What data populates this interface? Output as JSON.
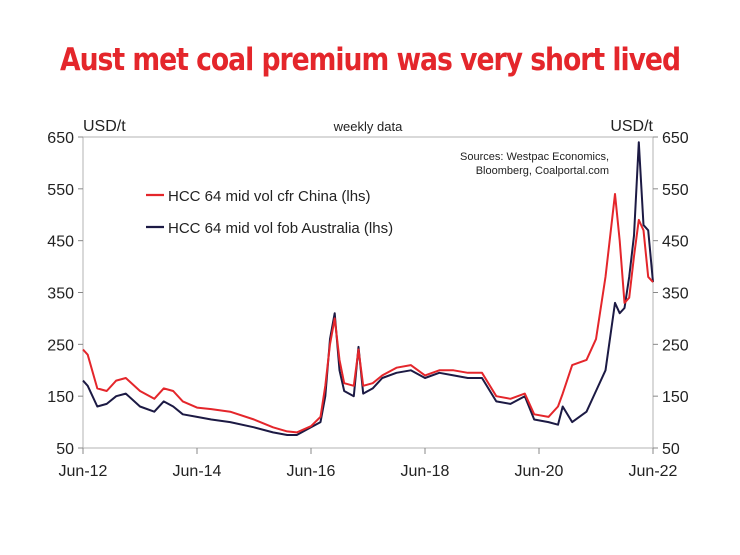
{
  "chart_data": {
    "type": "line",
    "title": "Aust met coal premium was very short lived",
    "left_unit": "USD/t",
    "right_unit": "USD/t",
    "frequency_note": "weekly data",
    "sources_line1": "Sources: Westpac Economics,",
    "sources_line2": "Bloomberg, Coalportal.com",
    "ylim": [
      50,
      650
    ],
    "yticks": [
      "650",
      "550",
      "450",
      "350",
      "250",
      "150",
      "50"
    ],
    "ytick_values": [
      650,
      550,
      450,
      350,
      250,
      150,
      50
    ],
    "xlim": [
      "2012-06",
      "2022-06"
    ],
    "xticks": [
      "Jun-12",
      "Jun-14",
      "Jun-16",
      "Jun-18",
      "Jun-20",
      "Jun-22"
    ],
    "xtick_values": [
      "2012-06",
      "2014-06",
      "2016-06",
      "2018-06",
      "2020-06",
      "2022-06"
    ],
    "grid": false,
    "legend_position": "top-left",
    "series": [
      {
        "name": "HCC 64 mid vol cfr China (lhs)",
        "color": "#e4262b",
        "points": [
          [
            "2012-06",
            240
          ],
          [
            "2012-07",
            230
          ],
          [
            "2012-09",
            165
          ],
          [
            "2012-11",
            160
          ],
          [
            "2013-01",
            180
          ],
          [
            "2013-03",
            185
          ],
          [
            "2013-06",
            160
          ],
          [
            "2013-09",
            145
          ],
          [
            "2013-11",
            165
          ],
          [
            "2014-01",
            160
          ],
          [
            "2014-03",
            140
          ],
          [
            "2014-06",
            128
          ],
          [
            "2014-09",
            125
          ],
          [
            "2015-01",
            120
          ],
          [
            "2015-06",
            105
          ],
          [
            "2015-10",
            90
          ],
          [
            "2016-01",
            82
          ],
          [
            "2016-03",
            80
          ],
          [
            "2016-06",
            92
          ],
          [
            "2016-08",
            110
          ],
          [
            "2016-09",
            170
          ],
          [
            "2016-10",
            250
          ],
          [
            "2016-11",
            300
          ],
          [
            "2016-12",
            220
          ],
          [
            "2017-01",
            175
          ],
          [
            "2017-03",
            170
          ],
          [
            "2017-04",
            240
          ],
          [
            "2017-05",
            170
          ],
          [
            "2017-07",
            175
          ],
          [
            "2017-09",
            190
          ],
          [
            "2017-12",
            205
          ],
          [
            "2018-03",
            210
          ],
          [
            "2018-06",
            190
          ],
          [
            "2018-09",
            200
          ],
          [
            "2018-12",
            200
          ],
          [
            "2019-03",
            195
          ],
          [
            "2019-06",
            195
          ],
          [
            "2019-09",
            150
          ],
          [
            "2019-12",
            145
          ],
          [
            "2020-03",
            155
          ],
          [
            "2020-05",
            115
          ],
          [
            "2020-08",
            110
          ],
          [
            "2020-10",
            130
          ],
          [
            "2020-11",
            155
          ],
          [
            "2021-01",
            210
          ],
          [
            "2021-04",
            220
          ],
          [
            "2021-06",
            260
          ],
          [
            "2021-08",
            380
          ],
          [
            "2021-10",
            540
          ],
          [
            "2021-11",
            450
          ],
          [
            "2021-12",
            330
          ],
          [
            "2022-01",
            340
          ],
          [
            "2022-02",
            420
          ],
          [
            "2022-03",
            490
          ],
          [
            "2022-04",
            470
          ],
          [
            "2022-05",
            380
          ],
          [
            "2022-06",
            370
          ]
        ]
      },
      {
        "name": "HCC 64 mid vol fob Australia (lhs)",
        "color": "#1c1a44",
        "points": [
          [
            "2012-06",
            180
          ],
          [
            "2012-07",
            170
          ],
          [
            "2012-09",
            130
          ],
          [
            "2012-11",
            135
          ],
          [
            "2013-01",
            150
          ],
          [
            "2013-03",
            155
          ],
          [
            "2013-06",
            130
          ],
          [
            "2013-09",
            120
          ],
          [
            "2013-11",
            140
          ],
          [
            "2014-01",
            130
          ],
          [
            "2014-03",
            115
          ],
          [
            "2014-06",
            110
          ],
          [
            "2014-09",
            105
          ],
          [
            "2015-01",
            100
          ],
          [
            "2015-06",
            90
          ],
          [
            "2015-10",
            80
          ],
          [
            "2016-01",
            75
          ],
          [
            "2016-03",
            75
          ],
          [
            "2016-06",
            90
          ],
          [
            "2016-08",
            100
          ],
          [
            "2016-09",
            150
          ],
          [
            "2016-10",
            260
          ],
          [
            "2016-11",
            310
          ],
          [
            "2016-12",
            200
          ],
          [
            "2017-01",
            160
          ],
          [
            "2017-03",
            150
          ],
          [
            "2017-04",
            245
          ],
          [
            "2017-05",
            155
          ],
          [
            "2017-07",
            165
          ],
          [
            "2017-09",
            185
          ],
          [
            "2017-12",
            195
          ],
          [
            "2018-03",
            200
          ],
          [
            "2018-06",
            185
          ],
          [
            "2018-09",
            195
          ],
          [
            "2018-12",
            190
          ],
          [
            "2019-03",
            185
          ],
          [
            "2019-06",
            185
          ],
          [
            "2019-09",
            140
          ],
          [
            "2019-12",
            135
          ],
          [
            "2020-03",
            150
          ],
          [
            "2020-05",
            105
          ],
          [
            "2020-08",
            100
          ],
          [
            "2020-10",
            95
          ],
          [
            "2020-11",
            130
          ],
          [
            "2021-01",
            100
          ],
          [
            "2021-04",
            120
          ],
          [
            "2021-06",
            160
          ],
          [
            "2021-08",
            200
          ],
          [
            "2021-10",
            330
          ],
          [
            "2021-11",
            310
          ],
          [
            "2021-12",
            320
          ],
          [
            "2022-01",
            380
          ],
          [
            "2022-02",
            460
          ],
          [
            "2022-03",
            640
          ],
          [
            "2022-04",
            480
          ],
          [
            "2022-05",
            470
          ],
          [
            "2022-06",
            370
          ]
        ]
      }
    ]
  }
}
